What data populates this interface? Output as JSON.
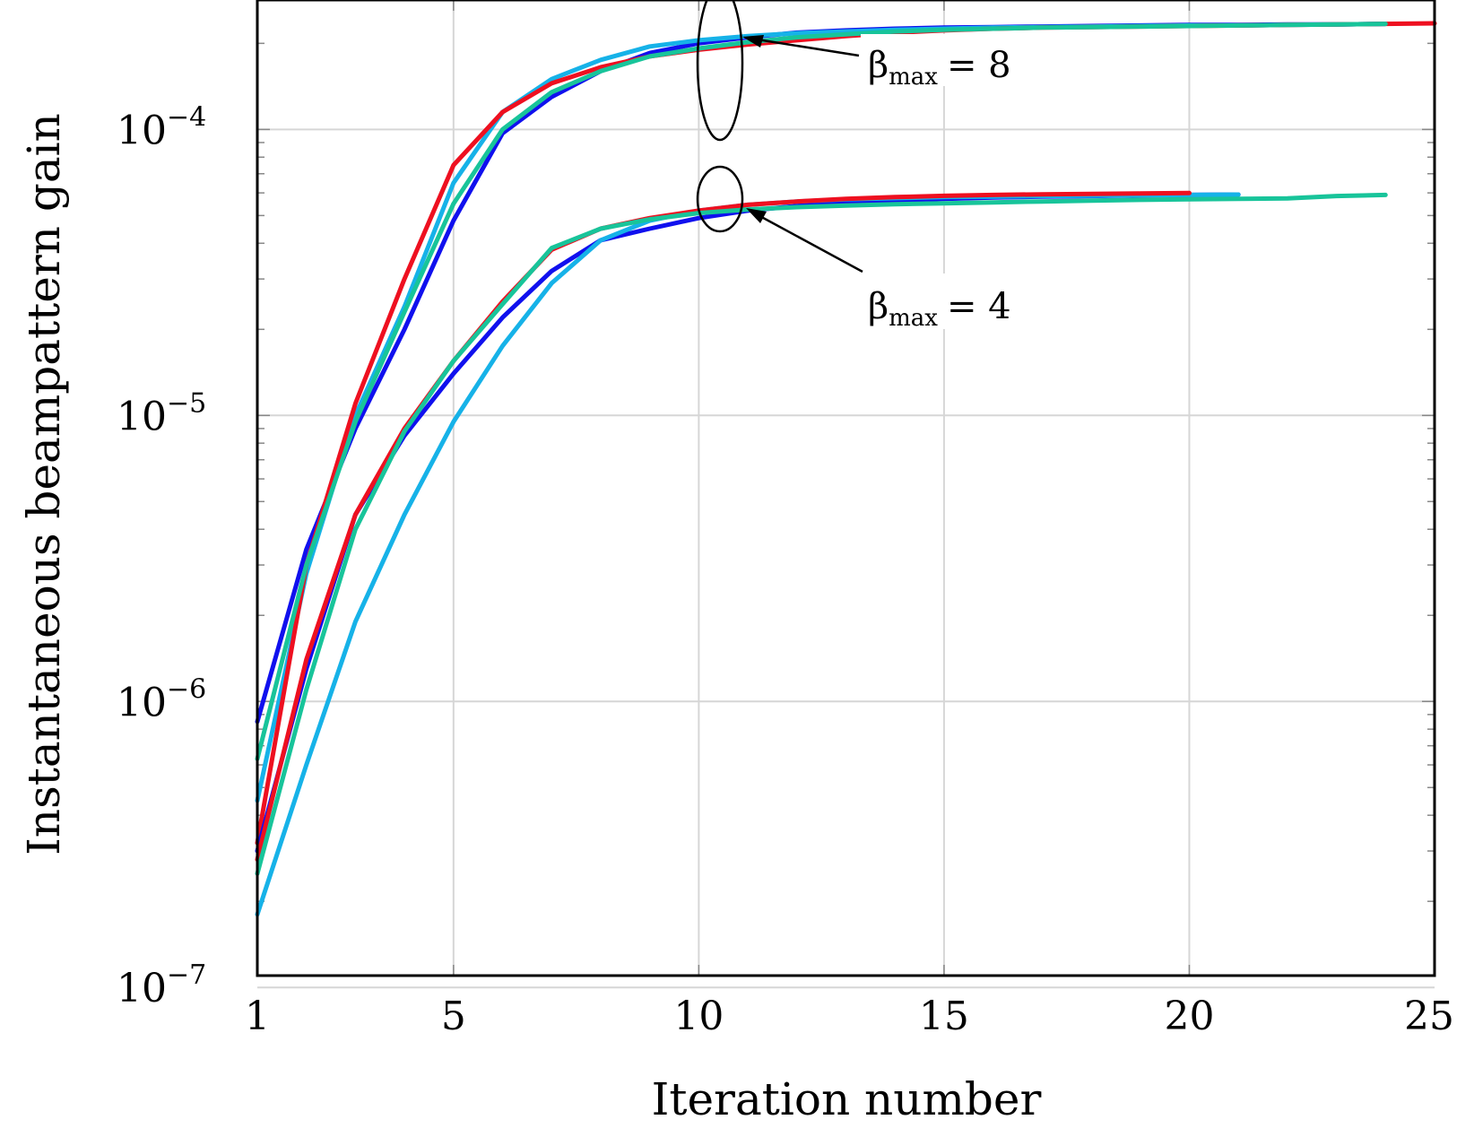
{
  "chart_data": {
    "type": "line",
    "title": "",
    "xlabel": "Iteration number",
    "ylabel": "Instantaneous beampattern gain",
    "xlim": [
      1,
      25
    ],
    "ylim": [
      1.1e-07,
      0.00026
    ],
    "yscale": "log",
    "grid": true,
    "legend": "none",
    "x_ticks": [
      {
        "value": 1,
        "label": "1"
      },
      {
        "value": 5,
        "label": "5"
      },
      {
        "value": 10,
        "label": "10"
      },
      {
        "value": 15,
        "label": "15"
      },
      {
        "value": 20,
        "label": "20"
      },
      {
        "value": 25,
        "label": "25"
      }
    ],
    "y_ticks": [
      {
        "value": 1e-07,
        "base": "10",
        "exp": "−7"
      },
      {
        "value": 1e-06,
        "base": "10",
        "exp": "−6"
      },
      {
        "value": 1e-05,
        "base": "10",
        "exp": "−5"
      },
      {
        "value": 0.0001,
        "base": "10",
        "exp": "−4"
      }
    ],
    "colors": {
      "blue": "#1010ee",
      "cyan": "#16b2e8",
      "red": "#ee1020",
      "green": "#18c49a"
    },
    "series": [
      {
        "name": "beta8-blue",
        "color": "#1010ee",
        "x": [
          1,
          2,
          3,
          4,
          5,
          6,
          7,
          8,
          9,
          10,
          11,
          12,
          13,
          14,
          15,
          16,
          17,
          18,
          19,
          20,
          21,
          22,
          23,
          24
        ],
        "y": [
          8.5e-07,
          3.4e-06,
          9e-06,
          2e-05,
          4.8e-05,
          9.7e-05,
          0.00013,
          0.00016,
          0.000185,
          0.0002,
          0.00021,
          0.000218,
          0.000222,
          0.000225,
          0.000227,
          0.000228,
          0.000229,
          0.00023,
          0.000231,
          0.000232,
          0.000232,
          0.000233,
          0.000233,
          0.000234
        ]
      },
      {
        "name": "beta8-cyan",
        "color": "#16b2e8",
        "x": [
          1,
          2,
          3,
          4,
          5,
          6,
          7,
          8,
          9,
          10,
          11,
          12,
          13,
          14,
          15,
          16,
          17,
          18,
          19,
          20,
          21,
          22,
          23,
          24
        ],
        "y": [
          4.5e-07,
          2.8e-06,
          1e-05,
          2.4e-05,
          6.5e-05,
          0.000115,
          0.00015,
          0.000175,
          0.000195,
          0.000205,
          0.000212,
          0.000217,
          0.00022,
          0.000223,
          0.000225,
          0.000227,
          0.000228,
          0.000229,
          0.00023,
          0.000231,
          0.000231,
          0.000232,
          0.000233,
          0.000234
        ]
      },
      {
        "name": "beta8-red",
        "color": "#ee1020",
        "x": [
          1,
          2,
          3,
          4,
          5,
          6,
          7,
          8,
          9,
          10,
          11,
          12,
          13,
          14,
          15,
          16,
          17,
          18,
          19,
          20,
          21,
          22,
          23,
          24,
          25
        ],
        "y": [
          3.2e-07,
          3e-06,
          1.1e-05,
          3e-05,
          7.5e-05,
          0.000115,
          0.000145,
          0.000165,
          0.00018,
          0.00019,
          0.000198,
          0.000205,
          0.000212,
          0.000218,
          0.000222,
          0.000225,
          0.000227,
          0.000228,
          0.000229,
          0.00023,
          0.000231,
          0.000232,
          0.000233,
          0.000234,
          0.000235
        ]
      },
      {
        "name": "beta8-green",
        "color": "#18c49a",
        "x": [
          1,
          2,
          3,
          4,
          5,
          6,
          7,
          8,
          9,
          10,
          11,
          12,
          13,
          14,
          15,
          16,
          17,
          18,
          19,
          20,
          21,
          22,
          23,
          24
        ],
        "y": [
          6.3e-07,
          3e-06,
          9.5e-06,
          2.3e-05,
          5.5e-05,
          0.0001,
          0.000135,
          0.00016,
          0.00018,
          0.000192,
          0.000202,
          0.00021,
          0.000215,
          0.00022,
          0.000223,
          0.000225,
          0.000227,
          0.000228,
          0.000229,
          0.00023,
          0.000231,
          0.000232,
          0.000233,
          0.000234
        ]
      },
      {
        "name": "beta4-blue",
        "color": "#1010ee",
        "x": [
          1,
          2,
          3,
          4,
          5,
          6,
          7,
          8,
          9,
          10,
          11,
          12,
          13,
          14,
          15,
          16,
          17,
          18,
          19,
          20,
          21
        ],
        "y": [
          3e-07,
          1.3e-06,
          4.5e-06,
          8.5e-06,
          1.4e-05,
          2.2e-05,
          3.2e-05,
          4.1e-05,
          4.5e-05,
          4.9e-05,
          5.2e-05,
          5.4e-05,
          5.55e-05,
          5.65e-05,
          5.72e-05,
          5.78e-05,
          5.82e-05,
          5.85e-05,
          5.88e-05,
          5.9e-05,
          5.92e-05
        ]
      },
      {
        "name": "beta4-cyan",
        "color": "#16b2e8",
        "x": [
          1,
          2,
          3,
          4,
          5,
          6,
          7,
          8,
          9,
          10,
          11,
          12,
          13,
          14,
          15,
          16,
          17,
          18,
          19,
          20,
          21
        ],
        "y": [
          1.8e-07,
          6e-07,
          1.9e-06,
          4.5e-06,
          9.5e-06,
          1.75e-05,
          2.9e-05,
          4.1e-05,
          4.8e-05,
          5.2e-05,
          5.45e-05,
          5.6e-05,
          5.7e-05,
          5.75e-05,
          5.8e-05,
          5.82e-05,
          5.85e-05,
          5.87e-05,
          5.89e-05,
          5.9e-05,
          5.92e-05
        ]
      },
      {
        "name": "beta4-red",
        "color": "#ee1020",
        "x": [
          1,
          2,
          3,
          4,
          5,
          6,
          7,
          8,
          9,
          10,
          11,
          12,
          13,
          14,
          15,
          16,
          17,
          18,
          19,
          20
        ],
        "y": [
          2.8e-07,
          1.4e-06,
          4.5e-06,
          9e-06,
          1.55e-05,
          2.5e-05,
          3.8e-05,
          4.5e-05,
          4.9e-05,
          5.2e-05,
          5.45e-05,
          5.6e-05,
          5.72e-05,
          5.8e-05,
          5.86e-05,
          5.9e-05,
          5.93e-05,
          5.95e-05,
          5.97e-05,
          5.99e-05
        ]
      },
      {
        "name": "beta4-green",
        "color": "#18c49a",
        "x": [
          1,
          2,
          3,
          4,
          5,
          6,
          7,
          8,
          9,
          10,
          11,
          12,
          13,
          14,
          15,
          16,
          17,
          18,
          19,
          20,
          21,
          22,
          23,
          24
        ],
        "y": [
          2.5e-07,
          1.1e-06,
          4e-06,
          8.8e-06,
          1.55e-05,
          2.45e-05,
          3.85e-05,
          4.5e-05,
          4.85e-05,
          5.1e-05,
          5.25e-05,
          5.35e-05,
          5.42e-05,
          5.48e-05,
          5.52e-05,
          5.56e-05,
          5.6e-05,
          5.64e-05,
          5.67e-05,
          5.7e-05,
          5.72e-05,
          5.74e-05,
          5.85e-05,
          5.9e-05
        ]
      }
    ],
    "annotations": [
      {
        "name": "beta-max-8",
        "symbol": "β",
        "sub": "max",
        "text": "= 8",
        "group": "upper"
      },
      {
        "name": "beta-max-4",
        "symbol": "β",
        "sub": "max",
        "text": "= 4",
        "group": "lower"
      }
    ]
  }
}
